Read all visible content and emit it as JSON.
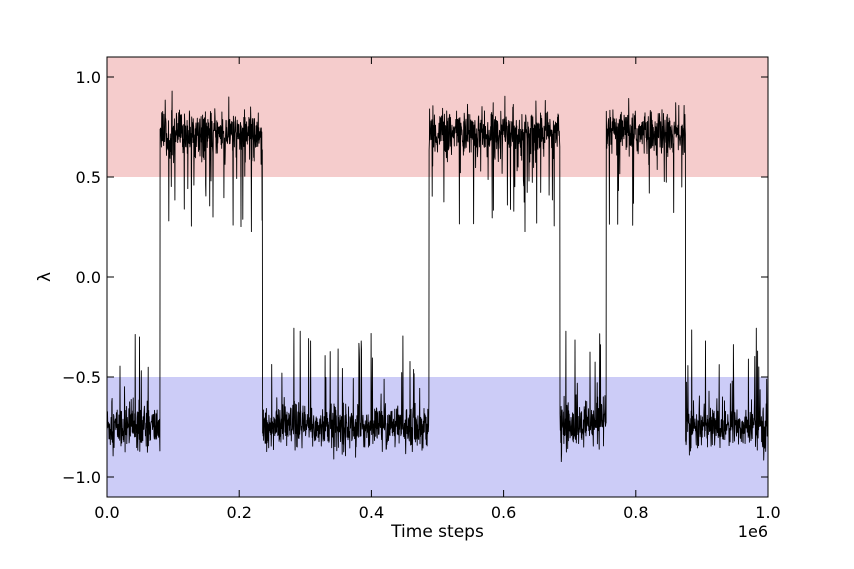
{
  "chart_data": {
    "type": "line",
    "title": "",
    "xlabel": "Time steps",
    "ylabel": "λ",
    "x_offset_text": "1e6",
    "xlim": [
      0.0,
      1.0
    ],
    "ylim": [
      -1.1,
      1.1
    ],
    "x_scale_multiplier": 1000000,
    "xticks": [
      {
        "value": 0.0,
        "label": "0.0"
      },
      {
        "value": 0.2,
        "label": "0.2"
      },
      {
        "value": 0.4,
        "label": "0.4"
      },
      {
        "value": 0.6,
        "label": "0.6"
      },
      {
        "value": 0.8,
        "label": "0.8"
      },
      {
        "value": 1.0,
        "label": "1.0"
      }
    ],
    "yticks": [
      {
        "value": 1.0,
        "label": "1.0"
      },
      {
        "value": 0.5,
        "label": "0.5"
      },
      {
        "value": 0.0,
        "label": "0.0"
      },
      {
        "value": -0.5,
        "label": "−0.5"
      },
      {
        "value": -1.0,
        "label": "−1.0"
      }
    ],
    "bands": [
      {
        "y0": 0.5,
        "y1": 1.1,
        "color": "#f5cccc"
      },
      {
        "y0": -1.1,
        "y1": -0.5,
        "color": "#ccccf7"
      }
    ],
    "series_color": "#000000",
    "grid": false,
    "series": [
      {
        "segments": [
          {
            "x0": 0.0,
            "x1": 0.08,
            "mean": -0.75,
            "state": "low"
          },
          {
            "x0": 0.08,
            "x1": 0.235,
            "mean": 0.72,
            "state": "high"
          },
          {
            "x0": 0.235,
            "x1": 0.487,
            "mean": -0.75,
            "state": "low"
          },
          {
            "x0": 0.487,
            "x1": 0.685,
            "mean": 0.72,
            "state": "high"
          },
          {
            "x0": 0.685,
            "x1": 0.755,
            "mean": -0.75,
            "state": "low"
          },
          {
            "x0": 0.755,
            "x1": 0.875,
            "mean": 0.72,
            "state": "high"
          },
          {
            "x0": 0.875,
            "x1": 1.0,
            "mean": -0.75,
            "state": "low"
          }
        ]
      }
    ]
  }
}
